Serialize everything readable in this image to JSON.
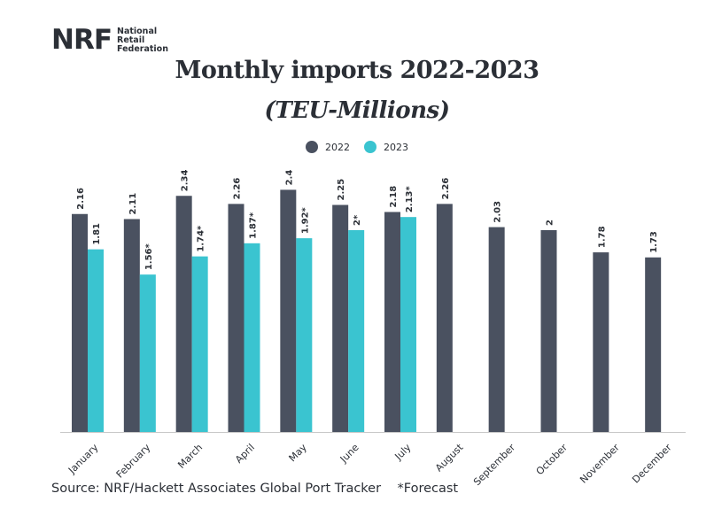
{
  "logo": {
    "mark": "NRF",
    "text": "National\nRetail\nFederation"
  },
  "source": "Source: NRF/Hackett Associates Global Port Tracker    *Forecast",
  "colors": {
    "series_2022": "#4a5160",
    "series_2023": "#3ac4d0",
    "axis": "#c8c8c8",
    "text": "#2b2f36"
  },
  "chart_data": {
    "type": "bar",
    "title": "Monthly imports 2022-2023",
    "subtitle": "(TEU-Millions)",
    "legend_position": "top-center",
    "grid": false,
    "categories": [
      "January",
      "February",
      "March",
      "April",
      "May",
      "June",
      "July",
      "August",
      "September",
      "October",
      "November",
      "December"
    ],
    "ylim": [
      0,
      2.5
    ],
    "series": [
      {
        "name": "2022",
        "values": [
          2.16,
          2.11,
          2.34,
          2.26,
          2.4,
          2.25,
          2.18,
          2.26,
          2.03,
          2,
          1.78,
          1.73
        ],
        "labels": [
          "2.16",
          "2.11",
          "2.34",
          "2.26",
          "2.4",
          "2.25",
          "2.18",
          "2.26",
          "2.03",
          "2",
          "1.78",
          "1.73"
        ]
      },
      {
        "name": "2023",
        "values": [
          1.81,
          1.56,
          1.74,
          1.87,
          1.92,
          2,
          2.13,
          null,
          null,
          null,
          null,
          null
        ],
        "labels": [
          "1.81",
          "1.56*",
          "1.74*",
          "1.87*",
          "1.92*",
          "2*",
          "2.13*",
          null,
          null,
          null,
          null,
          null
        ]
      }
    ]
  }
}
